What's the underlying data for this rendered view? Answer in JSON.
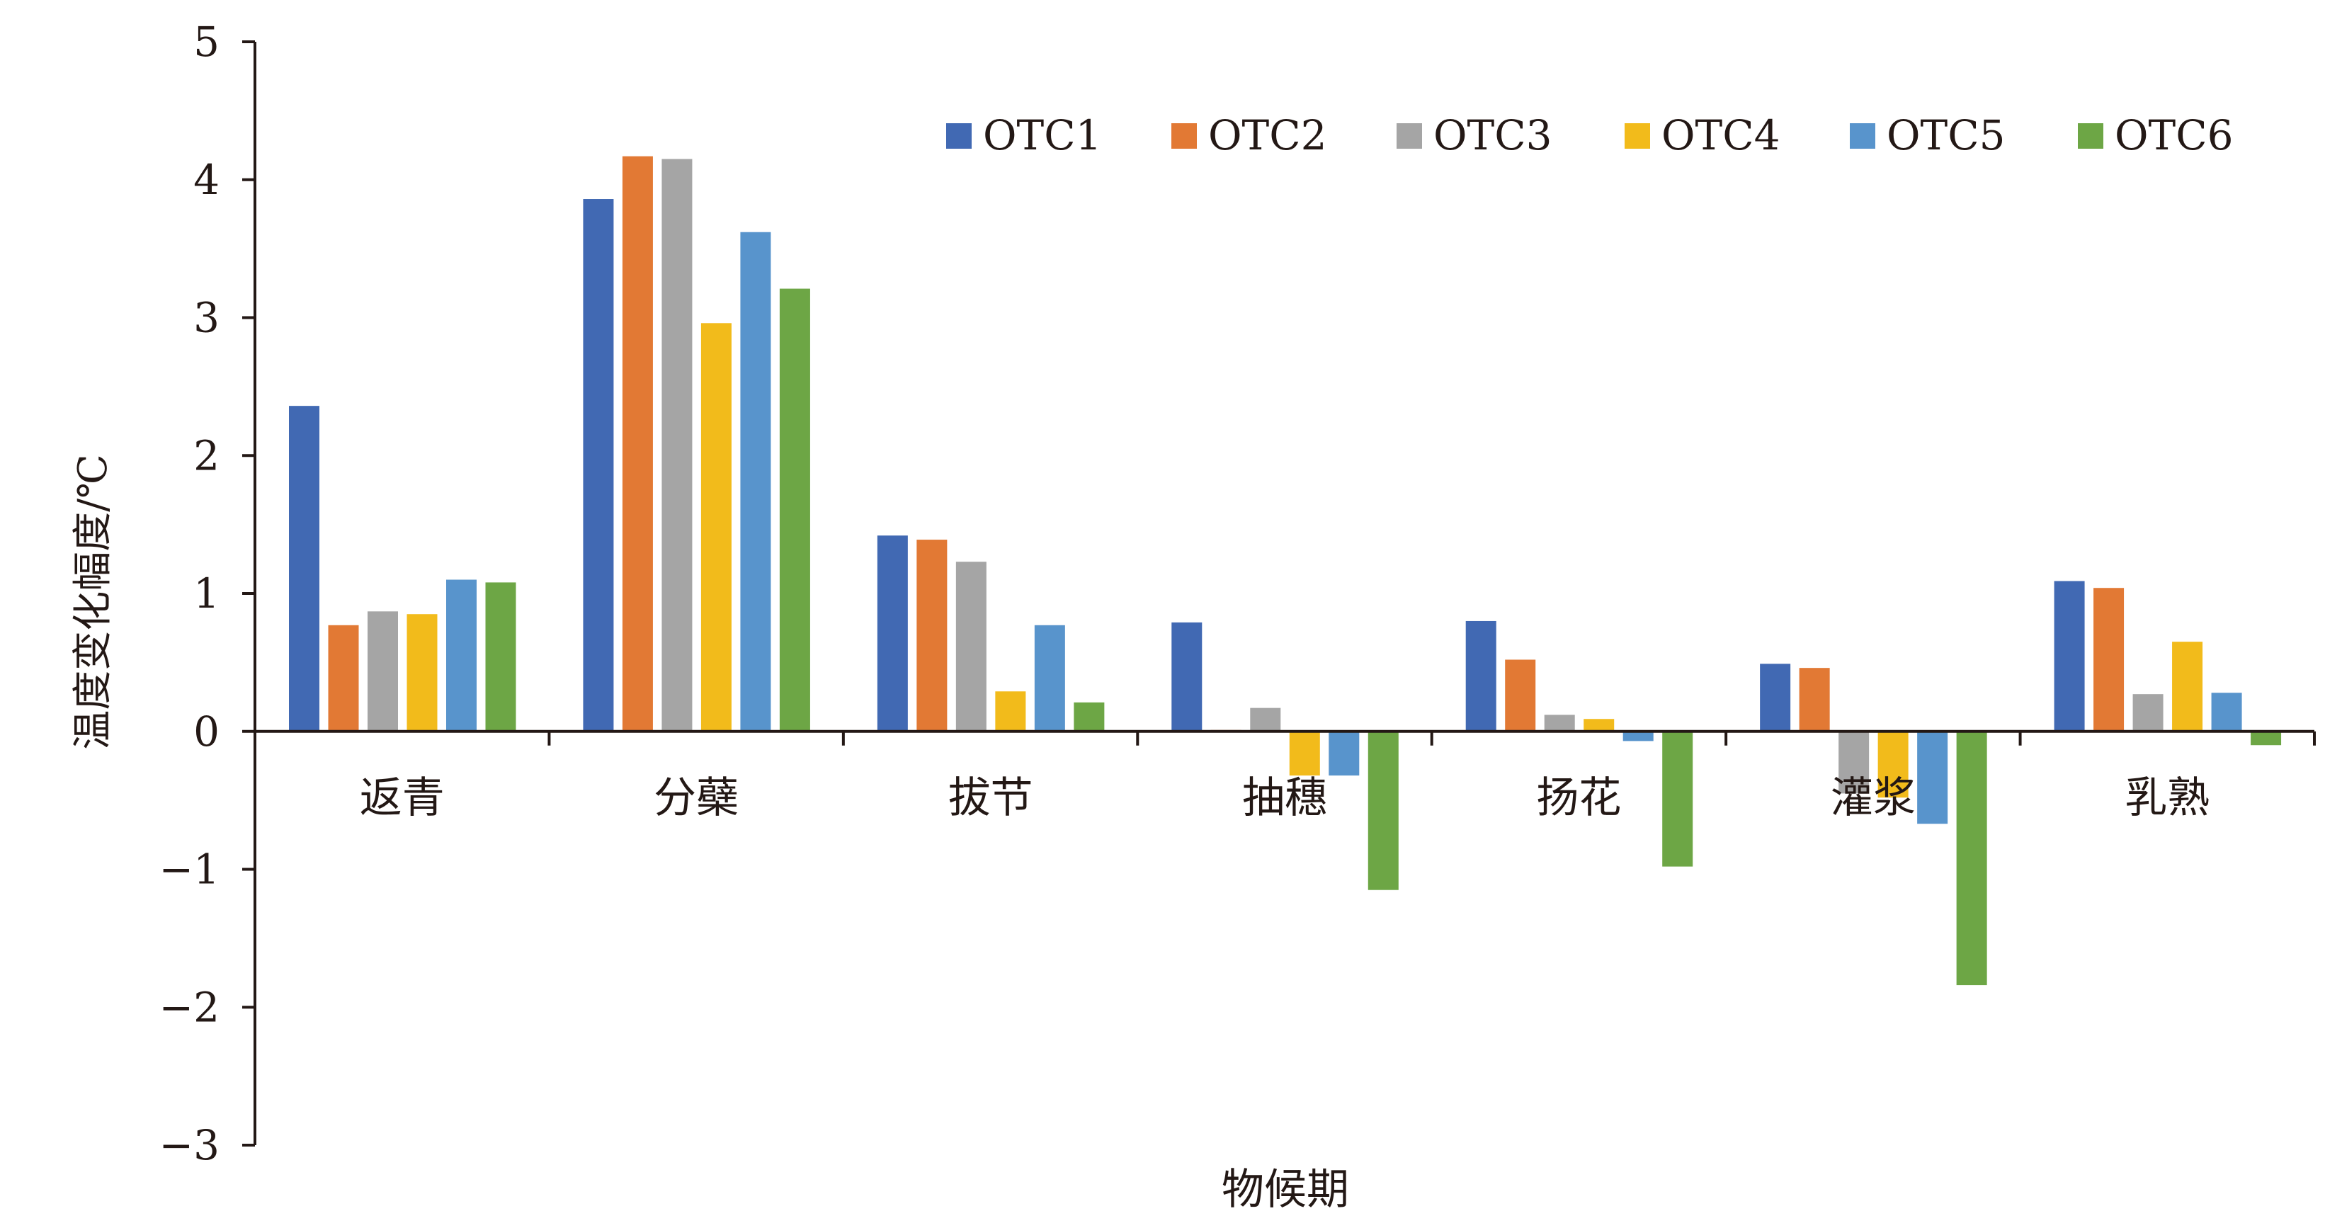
{
  "chart_data": {
    "type": "bar",
    "title": "",
    "xlabel": "物候期",
    "ylabel": "温度变化幅度/℃",
    "ylim": [
      -3,
      5
    ],
    "yticks": [
      5,
      4,
      3,
      2,
      1,
      0,
      -1,
      -2,
      -3
    ],
    "ytick_labels": [
      "5",
      "4",
      "3",
      "2",
      "1",
      "0",
      "−1",
      "−2",
      "−3"
    ],
    "grid": false,
    "legend_position": "top-right",
    "categories": [
      "返青",
      "分蘗",
      "拔节",
      "抽穗",
      "扬花",
      "灌浆",
      "乳熟"
    ],
    "series": [
      {
        "name": "OTC1",
        "color": "#4169b3",
        "values": [
          2.36,
          3.86,
          1.42,
          0.79,
          0.8,
          0.49,
          1.09
        ]
      },
      {
        "name": "OTC2",
        "color": "#e27934",
        "values": [
          0.77,
          4.17,
          1.39,
          0.01,
          0.52,
          0.46,
          1.04
        ]
      },
      {
        "name": "OTC3",
        "color": "#a5a5a5",
        "values": [
          0.87,
          4.15,
          1.23,
          0.17,
          0.12,
          -0.45,
          0.27
        ]
      },
      {
        "name": "OTC4",
        "color": "#f2bb1b",
        "values": [
          0.85,
          2.96,
          0.29,
          -0.32,
          0.09,
          -0.48,
          0.65
        ]
      },
      {
        "name": "OTC5",
        "color": "#5894cc",
        "values": [
          1.1,
          3.62,
          0.77,
          -0.32,
          -0.07,
          -0.67,
          0.28
        ]
      },
      {
        "name": "OTC6",
        "color": "#6da645",
        "values": [
          1.08,
          3.21,
          0.21,
          -1.15,
          -0.98,
          -1.84,
          -0.1
        ]
      }
    ]
  }
}
